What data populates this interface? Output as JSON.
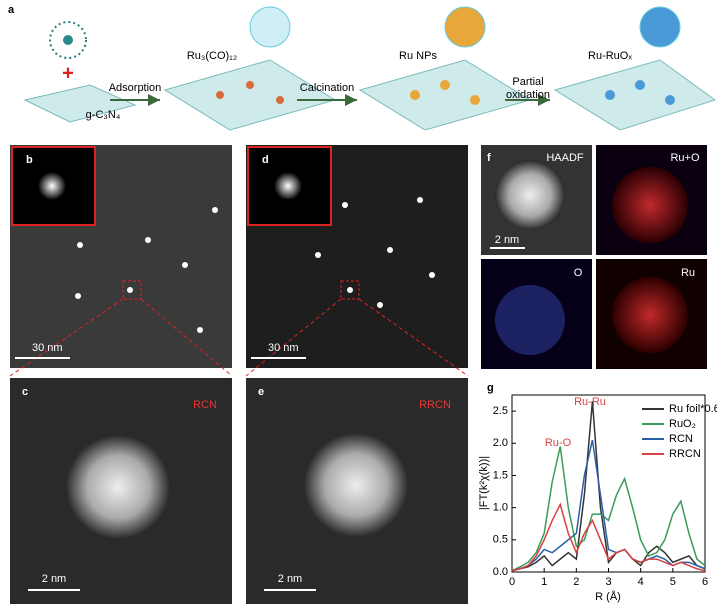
{
  "scheme": {
    "label": "a",
    "ligand_precursor": "Ru₃(CO)₁₂",
    "plus": "+",
    "support": "g-C₃N₄",
    "step1": "Adsorption",
    "step2": "Calcination",
    "stage2": "Ru NPs",
    "step3": "Partial\noxidation",
    "stage3": "Ru-RuOₓ"
  },
  "images": {
    "b": {
      "label": "b",
      "scale": "30 nm"
    },
    "c": {
      "label": "c",
      "sample": "RCN",
      "scale": "2 nm"
    },
    "d": {
      "label": "d",
      "scale": "30 nm"
    },
    "e": {
      "label": "e",
      "sample": "RRCN",
      "scale": "2 nm"
    },
    "f": {
      "label": "f",
      "tiles": [
        "HAADF",
        "Ru+O",
        "O",
        "Ru"
      ],
      "scale": "2 nm"
    }
  },
  "chart_data": {
    "type": "line",
    "label": "g",
    "xlabel": "R (Å)",
    "ylabel": "|FT(k²χ(k))|",
    "x": [
      0,
      0.25,
      0.5,
      0.75,
      1,
      1.25,
      1.5,
      1.75,
      2,
      2.25,
      2.5,
      2.75,
      3,
      3.25,
      3.5,
      3.75,
      4,
      4.25,
      4.5,
      4.75,
      5,
      5.25,
      5.5,
      5.75,
      6
    ],
    "series": [
      {
        "name": "Ru foil*0.6",
        "color": "#333333",
        "values": [
          0.02,
          0.05,
          0.08,
          0.15,
          0.25,
          0.1,
          0.2,
          0.3,
          0.2,
          1.2,
          2.65,
          1.0,
          0.15,
          0.3,
          0.35,
          0.2,
          0.1,
          0.3,
          0.4,
          0.3,
          0.15,
          0.2,
          0.25,
          0.1,
          0.05
        ]
      },
      {
        "name": "RuO₂",
        "color": "#3a9a5a",
        "values": [
          0.02,
          0.08,
          0.15,
          0.3,
          0.6,
          1.4,
          1.95,
          1.0,
          0.4,
          0.5,
          0.9,
          0.9,
          0.8,
          1.2,
          1.45,
          1.0,
          0.5,
          0.25,
          0.3,
          0.5,
          0.9,
          1.1,
          0.6,
          0.2,
          0.1
        ]
      },
      {
        "name": "RCN",
        "color": "#2a5fa8",
        "values": [
          0.02,
          0.05,
          0.1,
          0.2,
          0.35,
          0.3,
          0.4,
          0.5,
          0.6,
          1.5,
          2.05,
          1.2,
          0.35,
          0.3,
          0.35,
          0.2,
          0.15,
          0.2,
          0.25,
          0.2,
          0.1,
          0.15,
          0.15,
          0.1,
          0.05
        ]
      },
      {
        "name": "RRCN",
        "color": "#d94040",
        "values": [
          0.02,
          0.05,
          0.1,
          0.25,
          0.5,
          0.8,
          1.05,
          0.6,
          0.3,
          0.6,
          0.8,
          0.5,
          0.2,
          0.3,
          0.35,
          0.2,
          0.15,
          0.2,
          0.2,
          0.15,
          0.1,
          0.15,
          0.1,
          0.05,
          0.02
        ]
      }
    ],
    "xlim": [
      0,
      6
    ],
    "xticks": [
      0,
      1,
      2,
      3,
      4,
      5,
      6
    ],
    "ylim": [
      0,
      2.75
    ],
    "yticks": [
      {
        "value": 0,
        "label": "0.0"
      },
      0.5,
      {
        "value": 1,
        "label": "1.0"
      },
      1.5,
      {
        "value": 2,
        "label": "2.0"
      },
      2.5
    ],
    "annotations": [
      "Ru-Ru",
      "Ru-O"
    ]
  }
}
